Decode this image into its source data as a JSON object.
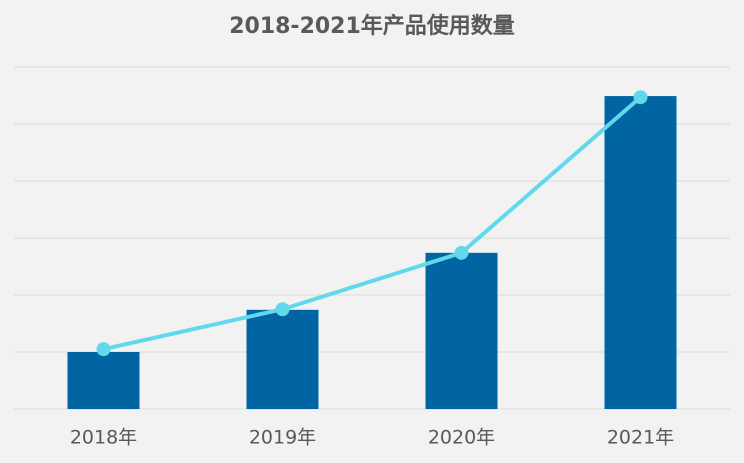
{
  "chart_data": {
    "type": "bar",
    "title": "2018-2021年产品使用数量",
    "categories": [
      "2018年",
      "2019年",
      "2020年",
      "2021年"
    ],
    "series": [
      {
        "type": "bar",
        "color": "#0065a2",
        "values": [
          1.0,
          1.74,
          2.74,
          5.49
        ]
      },
      {
        "type": "line",
        "color": "#62d8ec",
        "values": [
          1.05,
          1.75,
          2.74,
          5.47
        ]
      }
    ],
    "ylim": [
      0,
      6
    ],
    "yticks": [
      0,
      1,
      2,
      3,
      4,
      5,
      6
    ],
    "grid": true
  }
}
